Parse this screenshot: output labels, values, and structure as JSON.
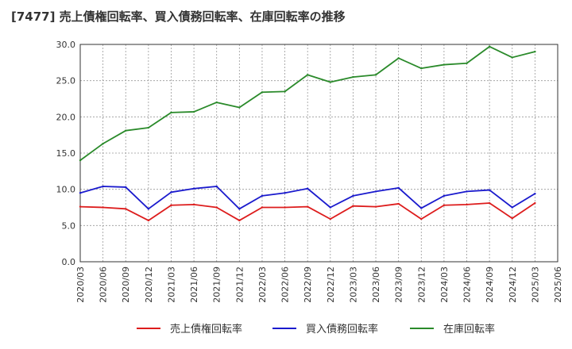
{
  "chart_data": {
    "type": "line",
    "title": "[7477]  売上債権回転率、買入債務回転率、在庫回転率の推移",
    "xlabel": "",
    "ylabel": "",
    "ylim": [
      0,
      30
    ],
    "yticks": [
      "0.0",
      "5.0",
      "10.0",
      "15.0",
      "20.0",
      "25.0",
      "30.0"
    ],
    "grid": true,
    "legend": "bottom",
    "categories": [
      "2020/03",
      "2020/06",
      "2020/09",
      "2020/12",
      "2021/03",
      "2021/06",
      "2021/09",
      "2021/12",
      "2022/03",
      "2022/06",
      "2022/09",
      "2022/12",
      "2023/03",
      "2023/06",
      "2023/09",
      "2023/12",
      "2024/03",
      "2024/06",
      "2024/09",
      "2024/12",
      "2025/03",
      "2025/06"
    ],
    "series": [
      {
        "name": "売上債権回転率",
        "color": "#dd1c1c",
        "values": [
          7.6,
          7.5,
          7.3,
          5.7,
          7.8,
          7.9,
          7.5,
          5.7,
          7.5,
          7.5,
          7.6,
          5.9,
          7.7,
          7.6,
          8.0,
          5.9,
          7.8,
          7.9,
          8.1,
          6.0,
          8.1,
          null
        ]
      },
      {
        "name": "買入債務回転率",
        "color": "#1a1acd",
        "values": [
          9.5,
          10.4,
          10.3,
          7.3,
          9.6,
          10.1,
          10.4,
          7.3,
          9.1,
          9.5,
          10.1,
          7.5,
          9.1,
          9.7,
          10.2,
          7.4,
          9.1,
          9.7,
          9.9,
          7.5,
          9.4,
          null
        ]
      },
      {
        "name": "在庫回転率",
        "color": "#2a8a2a",
        "values": [
          14.0,
          16.3,
          18.1,
          18.5,
          20.6,
          20.7,
          22.0,
          21.3,
          23.4,
          23.5,
          25.8,
          24.8,
          25.5,
          25.8,
          28.1,
          26.7,
          27.2,
          27.4,
          29.7,
          28.2,
          29.0,
          null
        ]
      }
    ]
  }
}
